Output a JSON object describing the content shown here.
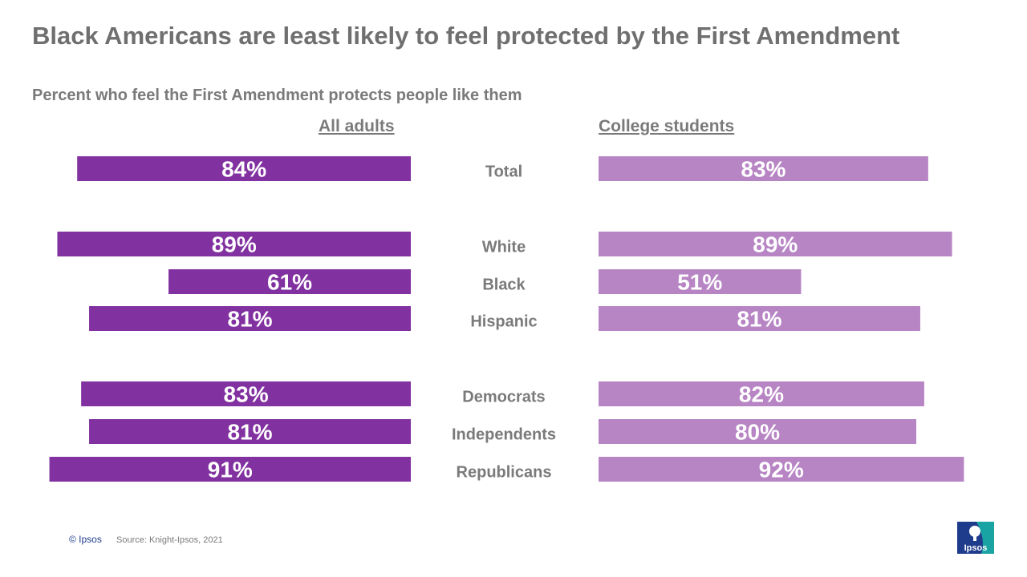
{
  "title": "Black Americans are least likely to feel protected by the First Amendment",
  "subtitle": "Percent who feel the First Amendment protects people like them",
  "footer": {
    "copyright": "© Ipsos",
    "source": "Source: Knight-Ipsos, 2021"
  },
  "logo_text": "Ipsos",
  "colors": {
    "adults": "#8231a0",
    "students": "#b784c4",
    "label": "#7a7a7a"
  },
  "chart_data": {
    "type": "bar",
    "orientation": "horizontal-butterfly",
    "categories": [
      "Total",
      "White",
      "Black",
      "Hispanic",
      "Democrats",
      "Independents",
      "Republicans"
    ],
    "series": [
      {
        "name": "All adults",
        "values": [
          84,
          89,
          61,
          81,
          83,
          81,
          91
        ],
        "labels": [
          "84%",
          "89%",
          "61%",
          "81%",
          "83%",
          "81%",
          "91%"
        ]
      },
      {
        "name": "College students",
        "values": [
          83,
          89,
          51,
          81,
          82,
          80,
          92
        ],
        "labels": [
          "83%",
          "89%",
          "51%",
          "81%",
          "82%",
          "80%",
          "92%"
        ]
      }
    ],
    "unit": "%",
    "xlim": [
      0,
      100
    ]
  }
}
